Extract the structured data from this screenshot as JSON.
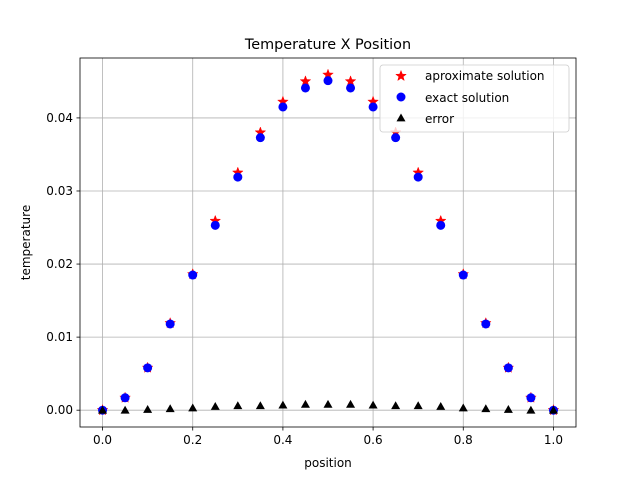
{
  "chart_data": {
    "type": "scatter",
    "title": "Temperature X Position",
    "xlabel": "position",
    "ylabel": "temperature",
    "xlim": [
      -0.05,
      1.05
    ],
    "ylim": [
      -0.0023,
      0.0482
    ],
    "x_ticks": [
      0.0,
      0.2,
      0.4,
      0.6,
      0.8,
      1.0
    ],
    "x_tick_labels": [
      "0.0",
      "0.2",
      "0.4",
      "0.6",
      "0.8",
      "1.0"
    ],
    "y_ticks": [
      0.0,
      0.01,
      0.02,
      0.03,
      0.04
    ],
    "y_tick_labels": [
      "0.00",
      "0.01",
      "0.02",
      "0.03",
      "0.04"
    ],
    "grid": true,
    "legend_position": "top-right",
    "x": [
      0.0,
      0.05,
      0.1,
      0.15,
      0.2,
      0.25,
      0.3,
      0.35,
      0.4,
      0.45,
      0.5,
      0.55,
      0.6,
      0.65,
      0.7,
      0.75,
      0.8,
      0.85,
      0.9,
      0.95,
      1.0
    ],
    "series": [
      {
        "name": "aproximate solution",
        "marker": "star",
        "color": "#ff0000",
        "values": [
          0.0,
          0.0017,
          0.0058,
          0.0119,
          0.0186,
          0.0259,
          0.0325,
          0.038,
          0.0422,
          0.045,
          0.0459,
          0.045,
          0.0422,
          0.038,
          0.0325,
          0.0259,
          0.0186,
          0.0119,
          0.0058,
          0.0017,
          0.0
        ]
      },
      {
        "name": "exact solution",
        "marker": "circle",
        "color": "#0000ff",
        "values": [
          0.0,
          0.0017,
          0.0058,
          0.0118,
          0.0185,
          0.0253,
          0.0319,
          0.0373,
          0.0415,
          0.0441,
          0.0451,
          0.0441,
          0.0415,
          0.0373,
          0.0319,
          0.0253,
          0.0185,
          0.0118,
          0.0058,
          0.0017,
          0.0
        ]
      },
      {
        "name": "error",
        "marker": "triangle",
        "color": "#000000",
        "values": [
          0.0,
          0.0,
          0.0001,
          0.0002,
          0.0003,
          0.0005,
          0.0006,
          0.0006,
          0.0007,
          0.0008,
          0.0008,
          0.0008,
          0.0007,
          0.0006,
          0.0006,
          0.0005,
          0.0003,
          0.0002,
          0.0001,
          0.0,
          0.0
        ]
      }
    ]
  }
}
